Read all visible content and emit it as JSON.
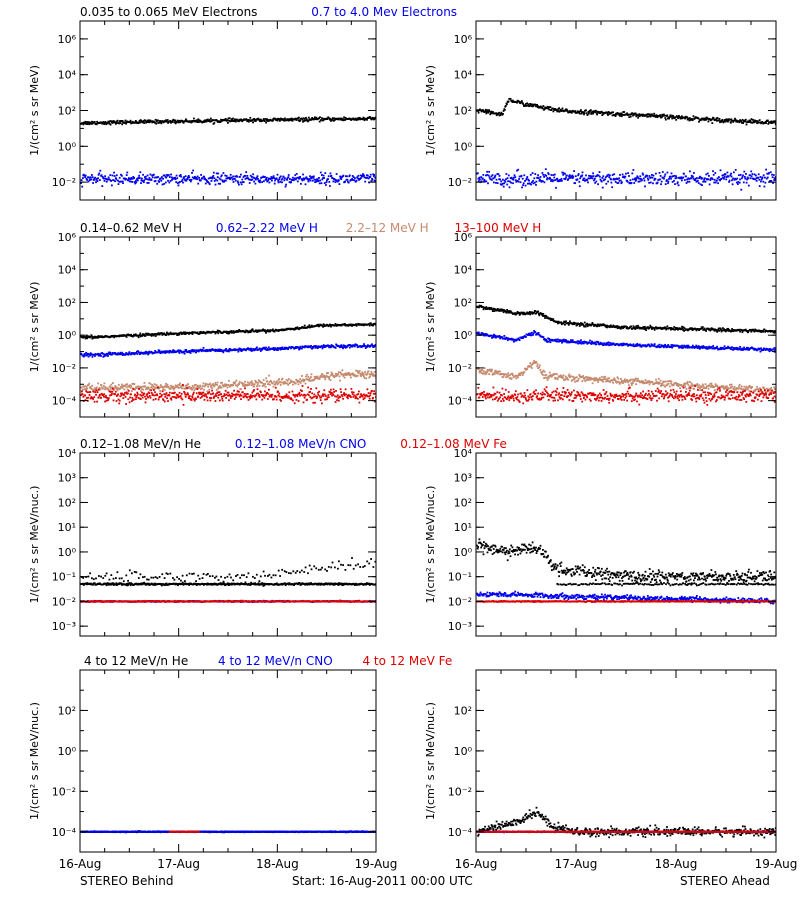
{
  "footer": {
    "left": "STEREO Behind",
    "center": "Start: 16-Aug-2011 00:00 UTC",
    "right": "STEREO Ahead"
  },
  "x_ticks": [
    "16-Aug",
    "17-Aug",
    "18-Aug",
    "19-Aug"
  ],
  "rows": [
    {
      "legend": [
        {
          "text": "0.035 to 0.065 MeV Electrons",
          "color": "#000000"
        },
        {
          "text": "0.7 to 4.0 Mev Electrons",
          "color": "#0000ee"
        }
      ],
      "ylabel": "1/(cm² s sr MeV)",
      "ylog": [
        -3,
        7
      ],
      "yticks": [
        {
          "e": -2,
          "label": "10⁻²"
        },
        {
          "e": 0,
          "label": "10⁰"
        },
        {
          "e": 2,
          "label": "10²"
        },
        {
          "e": 4,
          "label": "10⁴"
        },
        {
          "e": 6,
          "label": "10⁶"
        }
      ]
    },
    {
      "legend": [
        {
          "text": "0.14–0.62 MeV H",
          "color": "#000000"
        },
        {
          "text": "0.62–2.22 MeV H",
          "color": "#0000ee"
        },
        {
          "text": "2.2–12 MeV H",
          "color": "#c58a6e"
        },
        {
          "text": "13–100 MeV H",
          "color": "#dd0000"
        }
      ],
      "ylabel": "1/(cm² s sr MeV)",
      "ylog": [
        -5,
        6
      ],
      "yticks": [
        {
          "e": -4,
          "label": "10⁻⁴"
        },
        {
          "e": -2,
          "label": "10⁻²"
        },
        {
          "e": 0,
          "label": "10⁰"
        },
        {
          "e": 2,
          "label": "10²"
        },
        {
          "e": 4,
          "label": "10⁴"
        },
        {
          "e": 6,
          "label": "10⁶"
        }
      ]
    },
    {
      "legend": [
        {
          "text": "0.12–1.08 MeV/n He",
          "color": "#000000"
        },
        {
          "text": "0.12–1.08 MeV/n CNO",
          "color": "#0000ee"
        },
        {
          "text": "0.12–1.08 MeV Fe",
          "color": "#dd0000"
        }
      ],
      "ylabel": "1/(cm² s sr MeV/nuc.)",
      "ylog": [
        -3.4,
        4
      ],
      "yticks": [
        {
          "e": -3,
          "label": "10⁻³"
        },
        {
          "e": -2,
          "label": "10⁻²"
        },
        {
          "e": -1,
          "label": "10⁻¹"
        },
        {
          "e": 0,
          "label": "10⁰"
        },
        {
          "e": 1,
          "label": "10¹"
        },
        {
          "e": 2,
          "label": "10²"
        },
        {
          "e": 3,
          "label": "10³"
        },
        {
          "e": 4,
          "label": "10⁴"
        }
      ]
    },
    {
      "legend": [
        {
          "text": "4 to 12 MeV/n He",
          "color": "#000000"
        },
        {
          "text": "4 to 12 MeV/n CNO",
          "color": "#0000ee"
        },
        {
          "text": "4 to 12 MeV Fe",
          "color": "#dd0000"
        }
      ],
      "ylabel": "1/(cm² s sr MeV/nuc.)",
      "ylog": [
        -5,
        4
      ],
      "yticks": [
        {
          "e": -4,
          "label": "10⁻⁴"
        },
        {
          "e": -2,
          "label": "10⁻²"
        },
        {
          "e": 0,
          "label": "10⁰"
        },
        {
          "e": 2,
          "label": "10²"
        }
      ]
    }
  ],
  "chart_data": [
    {
      "type": "scatter",
      "panel": "behind-electrons",
      "xlim": [
        0,
        3
      ],
      "ylim": [
        0.001,
        10000000
      ],
      "yscale": "log",
      "series": [
        {
          "color": "#000000",
          "profile": [
            [
              0,
              20
            ],
            [
              1,
              25
            ],
            [
              2,
              30
            ],
            [
              3,
              35
            ]
          ],
          "scatter_dex": 0.05
        },
        {
          "color": "#0000ee",
          "profile": [
            [
              0,
              0.015
            ],
            [
              3,
              0.015
            ]
          ],
          "scatter_dex": 0.15
        }
      ]
    },
    {
      "type": "scatter",
      "panel": "ahead-electrons",
      "xlim": [
        0,
        3
      ],
      "ylim": [
        0.001,
        10000000
      ],
      "yscale": "log",
      "series": [
        {
          "color": "#000000",
          "profile": [
            [
              0,
              100
            ],
            [
              0.25,
              60
            ],
            [
              0.32,
              400
            ],
            [
              0.45,
              250
            ],
            [
              0.8,
              100
            ],
            [
              1.5,
              60
            ],
            [
              2.2,
              35
            ],
            [
              3,
              20
            ]
          ],
          "scatter_dex": 0.06
        },
        {
          "color": "#0000ee",
          "profile": [
            [
              0,
              0.015
            ],
            [
              3,
              0.015
            ]
          ],
          "scatter_dex": 0.2
        }
      ]
    },
    {
      "type": "scatter",
      "panel": "behind-protons",
      "xlim": [
        0,
        3
      ],
      "ylim": [
        1e-05,
        1000000
      ],
      "yscale": "log",
      "series": [
        {
          "color": "#000000",
          "profile": [
            [
              0,
              0.7
            ],
            [
              1,
              1.3
            ],
            [
              2,
              2.0
            ],
            [
              2.45,
              4
            ],
            [
              3,
              4.5
            ]
          ],
          "scatter_dex": 0.04
        },
        {
          "color": "#0000ee",
          "profile": [
            [
              0,
              0.06
            ],
            [
              1,
              0.1
            ],
            [
              2,
              0.15
            ],
            [
              2.4,
              0.2
            ],
            [
              3,
              0.22
            ]
          ],
          "scatter_dex": 0.05
        },
        {
          "color": "#c58a6e",
          "profile": [
            [
              0,
              0.0006
            ],
            [
              1.2,
              0.0007
            ],
            [
              2.2,
              0.0015
            ],
            [
              2.6,
              0.004
            ],
            [
              3,
              0.004
            ]
          ],
          "scatter_dex": 0.12
        },
        {
          "color": "#dd0000",
          "profile": [
            [
              0,
              0.0002
            ],
            [
              3,
              0.0002
            ]
          ],
          "scatter_dex": 0.2
        }
      ]
    },
    {
      "type": "scatter",
      "panel": "ahead-protons",
      "xlim": [
        0,
        3
      ],
      "ylim": [
        1e-05,
        1000000
      ],
      "yscale": "log",
      "series": [
        {
          "color": "#000000",
          "profile": [
            [
              0,
              60
            ],
            [
              0.4,
              20
            ],
            [
              0.6,
              25
            ],
            [
              0.8,
              6
            ],
            [
              1.5,
              3
            ],
            [
              2,
              2.5
            ],
            [
              3,
              1.7
            ]
          ],
          "scatter_dex": 0.05
        },
        {
          "color": "#0000ee",
          "profile": [
            [
              0,
              1.3
            ],
            [
              0.4,
              0.5
            ],
            [
              0.58,
              1.5
            ],
            [
              0.7,
              0.5
            ],
            [
              1.5,
              0.25
            ],
            [
              3,
              0.13
            ]
          ],
          "scatter_dex": 0.05
        },
        {
          "color": "#c58a6e",
          "profile": [
            [
              0,
              0.007
            ],
            [
              0.4,
              0.003
            ],
            [
              0.58,
              0.02
            ],
            [
              0.7,
              0.003
            ],
            [
              1.5,
              0.0015
            ],
            [
              3,
              0.0004
            ]
          ],
          "scatter_dex": 0.1
        },
        {
          "color": "#dd0000",
          "profile": [
            [
              0,
              0.0002
            ],
            [
              3,
              0.0002
            ]
          ],
          "scatter_dex": 0.2
        }
      ]
    },
    {
      "type": "scatter",
      "panel": "behind-heavy-low",
      "xlim": [
        0,
        3
      ],
      "ylim": [
        0.0004,
        10000
      ],
      "yscale": "log",
      "series": [
        {
          "color": "#000000",
          "profile": [
            [
              0,
              0.05
            ],
            [
              3,
              0.05
            ]
          ],
          "scatter_dex": 0.02,
          "extra": {
            "profile": [
              [
                0,
                0.1
              ],
              [
                1.8,
                0.1
              ],
              [
                2.5,
                0.25
              ],
              [
                3,
                0.3
              ]
            ],
            "scatter_dex": 0.1
          }
        },
        {
          "color": "#0000ee",
          "profile": [
            [
              0,
              0.01
            ],
            [
              3,
              0.01
            ]
          ],
          "scatter_dex": 0.01
        },
        {
          "color": "#dd0000",
          "profile": [
            [
              0,
              0.01
            ],
            [
              3,
              0.01
            ]
          ],
          "scatter_dex": 0.01
        }
      ]
    },
    {
      "type": "scatter",
      "panel": "ahead-heavy-low",
      "xlim": [
        0,
        3
      ],
      "ylim": [
        0.0004,
        10000
      ],
      "yscale": "log",
      "series": [
        {
          "color": "#000000",
          "profile": [
            [
              0,
              2
            ],
            [
              0.3,
              1
            ],
            [
              0.6,
              1.5
            ],
            [
              0.8,
              0.2
            ],
            [
              1.5,
              0.1
            ],
            [
              3,
              0.1
            ]
          ],
          "scatter_dex": 0.12,
          "extra": {
            "profile": [
              [
                0.8,
                0.05
              ],
              [
                3,
                0.05
              ]
            ],
            "scatter_dex": 0.02
          }
        },
        {
          "color": "#0000ee",
          "profile": [
            [
              0,
              0.02
            ],
            [
              3,
              0.01
            ]
          ],
          "scatter_dex": 0.05
        },
        {
          "color": "#dd0000",
          "profile": [
            [
              0,
              0.01
            ],
            [
              3,
              0.01
            ]
          ],
          "scatter_dex": 0.01
        }
      ]
    },
    {
      "type": "scatter",
      "panel": "behind-heavy-high",
      "xlim": [
        0,
        3
      ],
      "ylim": [
        1e-05,
        10000
      ],
      "yscale": "log",
      "series": [
        {
          "color": "#000000",
          "profile": [
            [
              0,
              0.0001
            ],
            [
              3,
              0.0001
            ]
          ],
          "scatter_dex": 0.01
        },
        {
          "color": "#0000ee",
          "profile": [
            [
              0,
              0.0001
            ],
            [
              3,
              0.0001
            ]
          ],
          "scatter_dex": 0.01
        },
        {
          "color": "#dd0000",
          "profile": [
            [
              0.9,
              0.0001
            ],
            [
              1.2,
              0.0001
            ]
          ],
          "scatter_dex": 0.01
        }
      ]
    },
    {
      "type": "scatter",
      "panel": "ahead-heavy-high",
      "xlim": [
        0,
        3
      ],
      "ylim": [
        1e-05,
        10000
      ],
      "yscale": "log",
      "series": [
        {
          "color": "#000000",
          "profile": [
            [
              0,
              0.0001
            ],
            [
              0.4,
              0.0003
            ],
            [
              0.6,
              0.001
            ],
            [
              0.75,
              0.0002
            ],
            [
              1,
              0.0001
            ],
            [
              3,
              0.0001
            ]
          ],
          "scatter_dex": 0.1
        },
        {
          "color": "#0000ee",
          "profile": [
            [
              0,
              0.0001
            ],
            [
              3,
              0.0001
            ]
          ],
          "scatter_dex": 0.01
        },
        {
          "color": "#dd0000",
          "profile": [
            [
              0,
              0.0001
            ],
            [
              3,
              0.0001
            ]
          ],
          "scatter_dex": 0.01
        }
      ]
    }
  ]
}
